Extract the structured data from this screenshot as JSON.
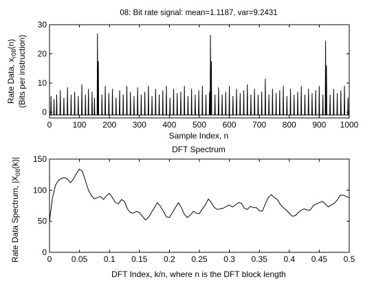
{
  "chart_data": [
    {
      "type": "line",
      "title": "08: Bit rate signal: mean=1.1187, var=9.2431",
      "xlabel": "Sample Index, n",
      "ylabel_line1_pre": "Rate Data, x",
      "ylabel_line1_sub": "r08",
      "ylabel_line1_post": "(n)",
      "ylabel_line2": "(Bits per instruction)",
      "xlim": [
        0,
        1000
      ],
      "ylim": [
        -2,
        30
      ],
      "xticks": [
        "0",
        "100",
        "200",
        "300",
        "400",
        "500",
        "600",
        "700",
        "800",
        "900",
        "1000"
      ],
      "yticks": [
        "0",
        "10",
        "20",
        "30"
      ],
      "baseline": -1,
      "spike_samples": [
        [
          5,
          5.5
        ],
        [
          15,
          4.5
        ],
        [
          24,
          6
        ],
        [
          36,
          7.5
        ],
        [
          48,
          5
        ],
        [
          60,
          8.5
        ],
        [
          72,
          6
        ],
        [
          84,
          7
        ],
        [
          96,
          5.5
        ],
        [
          108,
          9.5
        ],
        [
          120,
          6
        ],
        [
          130,
          8
        ],
        [
          142,
          7
        ],
        [
          150,
          5
        ],
        [
          160,
          27
        ],
        [
          163,
          17.5
        ],
        [
          175,
          6
        ],
        [
          186,
          9
        ],
        [
          198,
          6.5
        ],
        [
          210,
          8
        ],
        [
          222,
          5
        ],
        [
          234,
          7.5
        ],
        [
          246,
          6
        ],
        [
          258,
          9
        ],
        [
          270,
          7
        ],
        [
          282,
          5.5
        ],
        [
          294,
          8.5
        ],
        [
          306,
          6
        ],
        [
          318,
          7
        ],
        [
          330,
          9
        ],
        [
          342,
          5.5
        ],
        [
          354,
          8
        ],
        [
          366,
          6
        ],
        [
          378,
          7.5
        ],
        [
          390,
          9
        ],
        [
          402,
          5
        ],
        [
          414,
          8
        ],
        [
          426,
          6.5
        ],
        [
          438,
          7
        ],
        [
          450,
          9
        ],
        [
          462,
          5.5
        ],
        [
          474,
          8
        ],
        [
          486,
          6
        ],
        [
          498,
          7.5
        ],
        [
          510,
          9
        ],
        [
          522,
          6
        ],
        [
          534,
          7
        ],
        [
          537,
          26.5
        ],
        [
          540,
          17.5
        ],
        [
          552,
          6
        ],
        [
          564,
          8.5
        ],
        [
          576,
          6
        ],
        [
          588,
          7
        ],
        [
          600,
          9
        ],
        [
          612,
          5.5
        ],
        [
          624,
          8
        ],
        [
          636,
          6.5
        ],
        [
          648,
          7.5
        ],
        [
          660,
          9.5
        ],
        [
          672,
          6
        ],
        [
          684,
          8
        ],
        [
          696,
          6
        ],
        [
          708,
          7
        ],
        [
          720,
          11.5
        ],
        [
          732,
          6
        ],
        [
          744,
          8
        ],
        [
          756,
          6.5
        ],
        [
          768,
          7.5
        ],
        [
          780,
          9
        ],
        [
          792,
          5.5
        ],
        [
          804,
          8
        ],
        [
          816,
          6
        ],
        [
          828,
          7
        ],
        [
          840,
          9
        ],
        [
          852,
          6
        ],
        [
          864,
          8
        ],
        [
          876,
          6.5
        ],
        [
          888,
          7.5
        ],
        [
          900,
          9
        ],
        [
          912,
          6
        ],
        [
          921,
          24.5
        ],
        [
          924,
          16
        ],
        [
          936,
          6
        ],
        [
          948,
          8
        ],
        [
          960,
          6.5
        ],
        [
          972,
          7.5
        ],
        [
          984,
          9
        ],
        [
          996,
          5
        ]
      ]
    },
    {
      "type": "line",
      "title": "DFT Spectrum",
      "xlabel": "DFT Index, k/n, where n is the DFT block length",
      "ylabel_pre": "Rate Data Spectrum, |X",
      "ylabel_sub": "08",
      "ylabel_post": "(k)|",
      "xlim": [
        0,
        0.5
      ],
      "ylim": [
        0,
        150
      ],
      "xticks": [
        "0",
        "0.05",
        "0.1",
        "0.15",
        "0.2",
        "0.25",
        "0.3",
        "0.35",
        "0.4",
        "0.45",
        "0.5"
      ],
      "yticks": [
        "0",
        "50",
        "100",
        "150"
      ],
      "x": [
        0,
        0.005,
        0.01,
        0.015,
        0.02,
        0.025,
        0.03,
        0.035,
        0.04,
        0.045,
        0.05,
        0.055,
        0.06,
        0.065,
        0.07,
        0.075,
        0.08,
        0.085,
        0.09,
        0.095,
        0.1,
        0.105,
        0.11,
        0.115,
        0.12,
        0.125,
        0.13,
        0.135,
        0.14,
        0.145,
        0.15,
        0.155,
        0.16,
        0.165,
        0.17,
        0.175,
        0.18,
        0.185,
        0.19,
        0.195,
        0.2,
        0.205,
        0.21,
        0.215,
        0.22,
        0.225,
        0.23,
        0.235,
        0.24,
        0.245,
        0.25,
        0.255,
        0.26,
        0.265,
        0.27,
        0.275,
        0.28,
        0.285,
        0.29,
        0.295,
        0.3,
        0.305,
        0.31,
        0.315,
        0.32,
        0.325,
        0.33,
        0.335,
        0.34,
        0.345,
        0.35,
        0.355,
        0.36,
        0.365,
        0.37,
        0.375,
        0.38,
        0.385,
        0.39,
        0.395,
        0.4,
        0.405,
        0.41,
        0.415,
        0.42,
        0.425,
        0.43,
        0.435,
        0.44,
        0.445,
        0.45,
        0.455,
        0.46,
        0.465,
        0.47,
        0.475,
        0.48,
        0.485,
        0.49,
        0.495,
        0.5
      ],
      "y": [
        50,
        88,
        108,
        116,
        119,
        120,
        118,
        112,
        118,
        127,
        134,
        130,
        115,
        100,
        91,
        86,
        88,
        90,
        85,
        91,
        95,
        88,
        80,
        78,
        85,
        82,
        70,
        64,
        63,
        66,
        64,
        58,
        52,
        56,
        64,
        72,
        80,
        74,
        66,
        57,
        56,
        64,
        72,
        80,
        72,
        61,
        56,
        60,
        66,
        63,
        62,
        70,
        76,
        86,
        80,
        72,
        69,
        70,
        71,
        74,
        76,
        73,
        76,
        80,
        79,
        71,
        69,
        74,
        72,
        72,
        67,
        66,
        78,
        88,
        93,
        88,
        85,
        77,
        72,
        68,
        63,
        58,
        59,
        64,
        68,
        70,
        68,
        68,
        75,
        78,
        80,
        82,
        78,
        73,
        76,
        79,
        84,
        92,
        92,
        90,
        88
      ]
    }
  ]
}
